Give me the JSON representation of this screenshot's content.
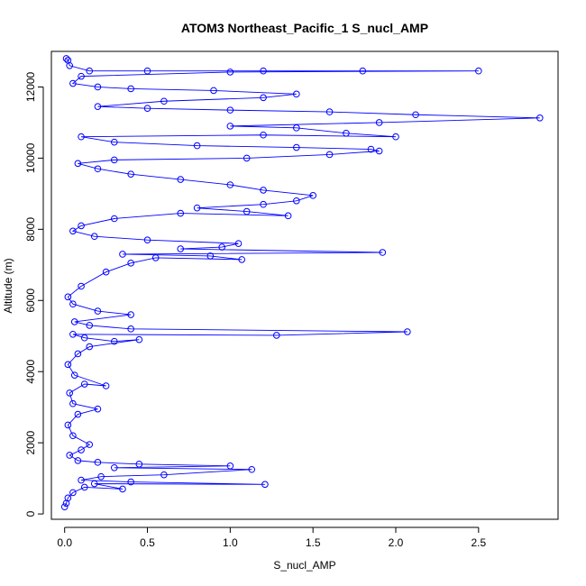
{
  "chart_data": {
    "type": "scatter",
    "title": "ATOM3 Northeast_Pacific_1 S_nucl_AMP",
    "xlabel": "S_nucl_AMP",
    "ylabel": "Altitude (m)",
    "xlim": [
      -0.08,
      2.98
    ],
    "ylim": [
      -150,
      13000
    ],
    "x_ticks": [
      0,
      0.5,
      1,
      1.5,
      2,
      2.5
    ],
    "x_tick_labels": [
      "0.0",
      "0.5",
      "1.0",
      "1.5",
      "2.0",
      "2.5"
    ],
    "y_ticks": [
      0,
      2000,
      4000,
      6000,
      8000,
      10000,
      12000
    ],
    "y_tick_labels": [
      "0",
      "2000",
      "4000",
      "6000",
      "8000",
      "10000",
      "12000"
    ],
    "grid": false,
    "series": [
      {
        "color": "#0000ff",
        "marker": "open-circle",
        "line": true,
        "points": [
          [
            0.0,
            200
          ],
          [
            0.01,
            300
          ],
          [
            0.02,
            450
          ],
          [
            0.05,
            600
          ],
          [
            0.12,
            750
          ],
          [
            0.35,
            700
          ],
          [
            0.18,
            850
          ],
          [
            1.21,
            830
          ],
          [
            0.4,
            900
          ],
          [
            0.1,
            950
          ],
          [
            0.22,
            1050
          ],
          [
            0.6,
            1100
          ],
          [
            1.13,
            1250
          ],
          [
            0.3,
            1300
          ],
          [
            1.0,
            1350
          ],
          [
            0.45,
            1400
          ],
          [
            0.2,
            1450
          ],
          [
            0.08,
            1500
          ],
          [
            0.03,
            1650
          ],
          [
            0.1,
            1800
          ],
          [
            0.15,
            1950
          ],
          [
            0.05,
            2200
          ],
          [
            0.02,
            2500
          ],
          [
            0.08,
            2800
          ],
          [
            0.2,
            2950
          ],
          [
            0.05,
            3100
          ],
          [
            0.03,
            3400
          ],
          [
            0.12,
            3650
          ],
          [
            0.25,
            3600
          ],
          [
            0.06,
            3900
          ],
          [
            0.02,
            4200
          ],
          [
            0.08,
            4500
          ],
          [
            0.15,
            4700
          ],
          [
            0.45,
            4900
          ],
          [
            0.3,
            4850
          ],
          [
            0.12,
            4950
          ],
          [
            0.05,
            5050
          ],
          [
            1.28,
            5020
          ],
          [
            2.07,
            5120
          ],
          [
            0.4,
            5200
          ],
          [
            0.15,
            5300
          ],
          [
            0.06,
            5400
          ],
          [
            0.4,
            5600
          ],
          [
            0.2,
            5700
          ],
          [
            0.05,
            5900
          ],
          [
            0.02,
            6100
          ],
          [
            0.1,
            6400
          ],
          [
            0.25,
            6800
          ],
          [
            0.4,
            7050
          ],
          [
            0.55,
            7200
          ],
          [
            1.07,
            7150
          ],
          [
            0.88,
            7250
          ],
          [
            0.35,
            7300
          ],
          [
            1.92,
            7350
          ],
          [
            0.7,
            7450
          ],
          [
            0.95,
            7500
          ],
          [
            1.05,
            7600
          ],
          [
            0.5,
            7700
          ],
          [
            0.18,
            7800
          ],
          [
            0.05,
            7950
          ],
          [
            0.1,
            8100
          ],
          [
            0.3,
            8300
          ],
          [
            0.7,
            8450
          ],
          [
            1.35,
            8380
          ],
          [
            1.1,
            8500
          ],
          [
            0.8,
            8600
          ],
          [
            1.2,
            8700
          ],
          [
            1.4,
            8800
          ],
          [
            1.5,
            8950
          ],
          [
            1.2,
            9100
          ],
          [
            1.0,
            9250
          ],
          [
            0.7,
            9400
          ],
          [
            0.4,
            9550
          ],
          [
            0.2,
            9700
          ],
          [
            0.08,
            9850
          ],
          [
            0.3,
            9950
          ],
          [
            1.1,
            10000
          ],
          [
            1.6,
            10100
          ],
          [
            1.9,
            10200
          ],
          [
            1.85,
            10250
          ],
          [
            1.4,
            10300
          ],
          [
            0.8,
            10350
          ],
          [
            0.3,
            10450
          ],
          [
            0.1,
            10600
          ],
          [
            1.2,
            10650
          ],
          [
            2.0,
            10600
          ],
          [
            1.7,
            10700
          ],
          [
            1.4,
            10850
          ],
          [
            1.0,
            10900
          ],
          [
            1.9,
            11000
          ],
          [
            2.87,
            11130
          ],
          [
            2.12,
            11220
          ],
          [
            1.6,
            11300
          ],
          [
            1.0,
            11350
          ],
          [
            0.5,
            11400
          ],
          [
            0.2,
            11450
          ],
          [
            0.6,
            11600
          ],
          [
            1.2,
            11700
          ],
          [
            1.4,
            11800
          ],
          [
            0.9,
            11900
          ],
          [
            0.4,
            11950
          ],
          [
            0.2,
            12000
          ],
          [
            0.05,
            12100
          ],
          [
            0.1,
            12300
          ],
          [
            1.0,
            12420
          ],
          [
            2.5,
            12450
          ],
          [
            1.8,
            12450
          ],
          [
            1.2,
            12450
          ],
          [
            0.5,
            12450
          ],
          [
            0.15,
            12450
          ],
          [
            0.03,
            12600
          ],
          [
            0.02,
            12750
          ],
          [
            0.01,
            12800
          ]
        ]
      }
    ]
  }
}
